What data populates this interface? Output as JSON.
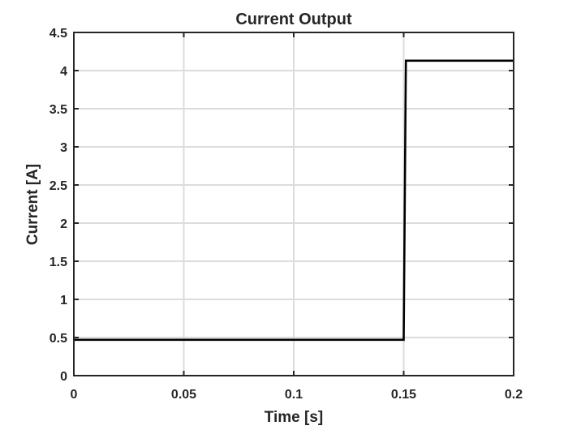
{
  "chart_data": {
    "type": "line",
    "title": "Current Output",
    "xlabel": "Time [s]",
    "ylabel": "Current [A]",
    "xlim": [
      0,
      0.2
    ],
    "ylim": [
      0,
      4.5
    ],
    "xticks": [
      0,
      0.05,
      0.1,
      0.15,
      0.2
    ],
    "xtick_labels": [
      "0",
      "0.05",
      "0.1",
      "0.15",
      "0.2"
    ],
    "yticks": [
      0,
      0.5,
      1,
      1.5,
      2,
      2.5,
      3,
      3.5,
      4,
      4.5
    ],
    "ytick_labels": [
      "0",
      "0.5",
      "1",
      "1.5",
      "2",
      "2.5",
      "3",
      "3.5",
      "4",
      "4.5"
    ],
    "grid": true,
    "series": [
      {
        "color": "#000000",
        "x": [
          0,
          0.15,
          0.151,
          0.2
        ],
        "y": [
          0.47,
          0.47,
          4.13,
          4.13
        ]
      }
    ]
  }
}
